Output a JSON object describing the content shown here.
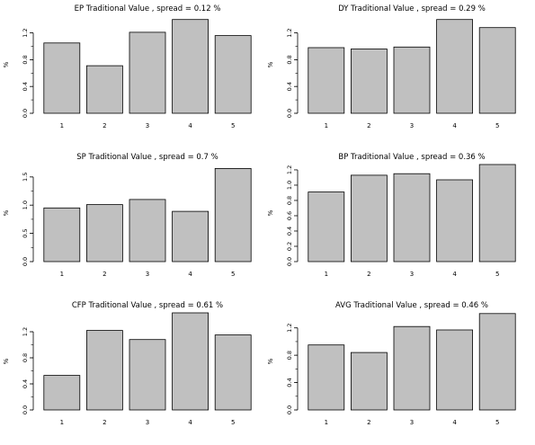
{
  "chart_data": [
    {
      "type": "bar",
      "title": "EP Traditional Value , spread = 0.12 %",
      "ylabel": "%",
      "categories": [
        "1",
        "2",
        "3",
        "4",
        "5"
      ],
      "values": [
        1.05,
        0.71,
        1.21,
        1.4,
        1.16
      ],
      "ylim": [
        0,
        1.45
      ],
      "yticks": [
        0.0,
        0.4,
        0.8,
        1.2
      ],
      "ytick_labels": [
        "0.0",
        "0.4",
        "0.8",
        "1.2"
      ],
      "minor_ticks": true,
      "grid": false
    },
    {
      "type": "bar",
      "title": "DY Traditional Value , spread = 0.29 %",
      "ylabel": "%",
      "categories": [
        "1",
        "2",
        "3",
        "4",
        "5"
      ],
      "values": [
        0.98,
        0.96,
        0.99,
        1.4,
        1.28
      ],
      "ylim": [
        0,
        1.45
      ],
      "yticks": [
        0.0,
        0.4,
        0.8,
        1.2
      ],
      "ytick_labels": [
        "0.0",
        "0.4",
        "0.8",
        "1.2"
      ],
      "minor_ticks": true,
      "grid": false
    },
    {
      "type": "bar",
      "title": "SP Traditional Value , spread = 0.7 %",
      "ylabel": "%",
      "categories": [
        "1",
        "2",
        "3",
        "4",
        "5"
      ],
      "values": [
        0.95,
        1.01,
        1.1,
        0.89,
        1.65
      ],
      "ylim": [
        0,
        1.72
      ],
      "yticks": [
        0.0,
        0.5,
        1.0,
        1.5
      ],
      "ytick_labels": [
        "0.0",
        "0.5",
        "1.0",
        "1.5"
      ],
      "minor_ticks": true,
      "grid": false
    },
    {
      "type": "bar",
      "title": "BP Traditional Value , spread = 0.36 %",
      "ylabel": "%",
      "categories": [
        "1",
        "2",
        "3",
        "4",
        "5"
      ],
      "values": [
        0.91,
        1.13,
        1.15,
        1.07,
        1.27
      ],
      "ylim": [
        0,
        1.27
      ],
      "yticks": [
        0.0,
        0.2,
        0.4,
        0.6,
        0.8,
        1.0,
        1.2
      ],
      "ytick_labels": [
        "0.0",
        "0.2",
        "0.4",
        "0.6",
        "0.8",
        "1.0",
        "1.2"
      ],
      "minor_ticks": false,
      "grid": false
    },
    {
      "type": "bar",
      "title": "CFP Traditional Value , spread = 0.61 %",
      "ylabel": "%",
      "categories": [
        "1",
        "2",
        "3",
        "4",
        "5"
      ],
      "values": [
        0.53,
        1.22,
        1.08,
        1.49,
        1.15
      ],
      "ylim": [
        0,
        1.49
      ],
      "yticks": [
        0.0,
        0.4,
        0.8,
        1.2
      ],
      "ytick_labels": [
        "0.0",
        "0.4",
        "0.8",
        "1.2"
      ],
      "minor_ticks": true,
      "grid": false
    },
    {
      "type": "bar",
      "title": "AVG Traditional Value , spread = 0.46 %",
      "ylabel": "%",
      "categories": [
        "1",
        "2",
        "3",
        "4",
        "5"
      ],
      "values": [
        0.95,
        0.84,
        1.22,
        1.17,
        1.41
      ],
      "ylim": [
        0,
        1.42
      ],
      "yticks": [
        0.0,
        0.4,
        0.8,
        1.2
      ],
      "ytick_labels": [
        "0.0",
        "0.4",
        "0.8",
        "1.2"
      ],
      "minor_ticks": true,
      "grid": false
    }
  ],
  "colors": {
    "bar_fill": "#c0c0c0",
    "bar_stroke": "#000000",
    "axis": "#000000",
    "background": "#ffffff"
  }
}
